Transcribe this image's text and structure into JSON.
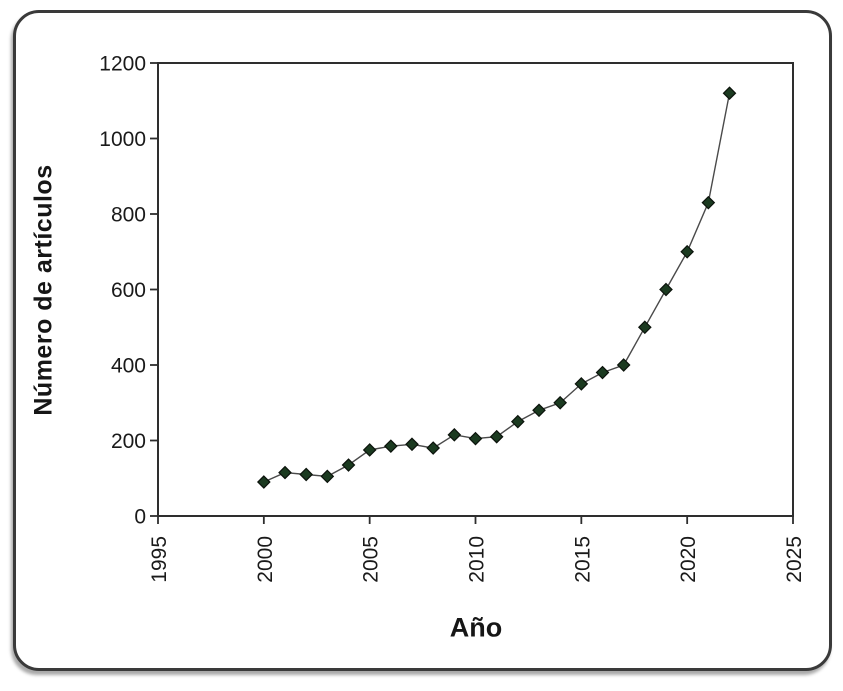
{
  "figure": {
    "background": "#ffffff",
    "frame_border_color": "#3a3a3a"
  },
  "chart_data": {
    "type": "line",
    "title": "",
    "xlabel": "Año",
    "ylabel": "Número de artículos",
    "x": [
      2000,
      2001,
      2002,
      2003,
      2004,
      2005,
      2006,
      2007,
      2008,
      2009,
      2010,
      2011,
      2012,
      2013,
      2014,
      2015,
      2016,
      2017,
      2018,
      2019,
      2020,
      2021,
      2022
    ],
    "values": [
      90,
      115,
      110,
      105,
      135,
      175,
      185,
      190,
      180,
      215,
      205,
      210,
      250,
      280,
      300,
      350,
      380,
      400,
      500,
      600,
      700,
      830,
      1120
    ],
    "series_name": "Número de artículos",
    "xlim": [
      1995,
      2025
    ],
    "ylim": [
      0,
      1200
    ],
    "x_ticks": [
      1995,
      2000,
      2005,
      2010,
      2015,
      2020,
      2025
    ],
    "y_ticks": [
      0,
      200,
      400,
      600,
      800,
      1000,
      1200
    ],
    "grid": false,
    "legend": "none",
    "marker": "diamond",
    "marker_color": "#1b3a20",
    "marker_edge_color": "#0b120b",
    "line_color": "#4a4a4a",
    "axis_color": "#2e2e2e",
    "tick_text_color": "#1a1a1a"
  }
}
